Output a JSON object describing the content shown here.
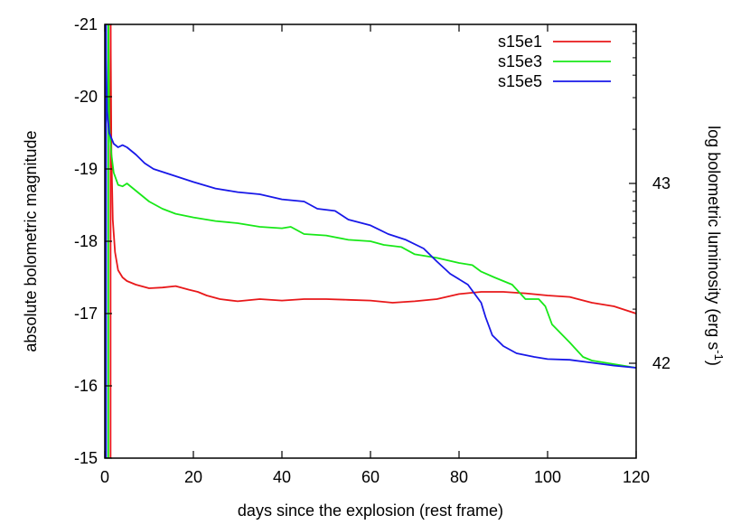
{
  "chart_data": {
    "type": "line",
    "title": "",
    "xlabel": "days since the explosion (rest frame)",
    "ylabel": "absolute bolometric magnitude",
    "y2label": "log bolometric luminosity (erg s",
    "y2label_sup": "-1",
    "y2label_end": ")",
    "xlim": [
      0,
      120
    ],
    "ylim": [
      -15,
      -21
    ],
    "xticks": [
      0,
      20,
      40,
      60,
      80,
      100,
      120
    ],
    "xtick_labels": [
      "0",
      "20",
      "40",
      "60",
      "80",
      "100",
      "120"
    ],
    "yticks": [
      -21,
      -20,
      -19,
      -18,
      -17,
      -16,
      -15
    ],
    "ytick_labels": [
      "-21",
      "-20",
      "-19",
      "-18",
      "-17",
      "-16",
      "-15"
    ],
    "y2ticks": [
      42,
      43
    ],
    "y2tick_labels": [
      "42",
      "43"
    ],
    "legend_position": "top-right",
    "grid": false,
    "series": [
      {
        "name": "s15e1",
        "color": "#e8181a",
        "points": [
          [
            1.3,
            -21.0
          ],
          [
            1.5,
            -19.2
          ],
          [
            1.8,
            -18.3
          ],
          [
            2.3,
            -17.85
          ],
          [
            3.0,
            -17.6
          ],
          [
            4.0,
            -17.5
          ],
          [
            5.0,
            -17.45
          ],
          [
            7.0,
            -17.4
          ],
          [
            10.0,
            -17.35
          ],
          [
            13.0,
            -17.36
          ],
          [
            16.0,
            -17.38
          ],
          [
            19.0,
            -17.33
          ],
          [
            21.0,
            -17.3
          ],
          [
            23.0,
            -17.25
          ],
          [
            26.0,
            -17.2
          ],
          [
            30.0,
            -17.17
          ],
          [
            35.0,
            -17.2
          ],
          [
            40.0,
            -17.18
          ],
          [
            45.0,
            -17.2
          ],
          [
            50.0,
            -17.2
          ],
          [
            55.0,
            -17.19
          ],
          [
            60.0,
            -17.18
          ],
          [
            65.0,
            -17.15
          ],
          [
            70.0,
            -17.17
          ],
          [
            75.0,
            -17.2
          ],
          [
            80.0,
            -17.27
          ],
          [
            85.0,
            -17.3
          ],
          [
            90.0,
            -17.3
          ],
          [
            95.0,
            -17.28
          ],
          [
            100.0,
            -17.25
          ],
          [
            105.0,
            -17.23
          ],
          [
            110.0,
            -17.15
          ],
          [
            115.0,
            -17.1
          ],
          [
            120.0,
            -17.0
          ]
        ]
      },
      {
        "name": "s15e3",
        "color": "#18e818",
        "points": [
          [
            0.8,
            -21.0
          ],
          [
            1.0,
            -19.6
          ],
          [
            1.5,
            -19.2
          ],
          [
            2.0,
            -18.95
          ],
          [
            3.0,
            -18.78
          ],
          [
            4.0,
            -18.76
          ],
          [
            5.0,
            -18.8
          ],
          [
            6.0,
            -18.75
          ],
          [
            8.0,
            -18.65
          ],
          [
            10.0,
            -18.55
          ],
          [
            13.0,
            -18.45
          ],
          [
            16.0,
            -18.38
          ],
          [
            20.0,
            -18.33
          ],
          [
            25.0,
            -18.28
          ],
          [
            30.0,
            -18.25
          ],
          [
            35.0,
            -18.2
          ],
          [
            40.0,
            -18.18
          ],
          [
            42.0,
            -18.2
          ],
          [
            45.0,
            -18.1
          ],
          [
            50.0,
            -18.08
          ],
          [
            55.0,
            -18.02
          ],
          [
            60.0,
            -18.0
          ],
          [
            63.0,
            -17.95
          ],
          [
            67.0,
            -17.92
          ],
          [
            70.0,
            -17.82
          ],
          [
            75.0,
            -17.77
          ],
          [
            80.0,
            -17.7
          ],
          [
            83.0,
            -17.67
          ],
          [
            85.0,
            -17.58
          ],
          [
            88.0,
            -17.5
          ],
          [
            92.0,
            -17.4
          ],
          [
            95.0,
            -17.2
          ],
          [
            98.0,
            -17.2
          ],
          [
            99.5,
            -17.1
          ],
          [
            101.0,
            -16.85
          ],
          [
            105.0,
            -16.6
          ],
          [
            108.0,
            -16.4
          ],
          [
            110.0,
            -16.35
          ],
          [
            115.0,
            -16.3
          ],
          [
            120.0,
            -16.25
          ]
        ]
      },
      {
        "name": "s15e5",
        "color": "#1818e8",
        "points": [
          [
            0.2,
            -21.0
          ],
          [
            0.5,
            -19.8
          ],
          [
            1.0,
            -19.5
          ],
          [
            2.0,
            -19.35
          ],
          [
            3.0,
            -19.3
          ],
          [
            4.0,
            -19.33
          ],
          [
            5.0,
            -19.3
          ],
          [
            7.0,
            -19.2
          ],
          [
            9.0,
            -19.08
          ],
          [
            11.0,
            -19.0
          ],
          [
            15.0,
            -18.92
          ],
          [
            20.0,
            -18.82
          ],
          [
            25.0,
            -18.73
          ],
          [
            30.0,
            -18.68
          ],
          [
            35.0,
            -18.65
          ],
          [
            40.0,
            -18.58
          ],
          [
            45.0,
            -18.55
          ],
          [
            48.0,
            -18.45
          ],
          [
            52.0,
            -18.42
          ],
          [
            55.0,
            -18.3
          ],
          [
            60.0,
            -18.22
          ],
          [
            64.0,
            -18.1
          ],
          [
            68.0,
            -18.02
          ],
          [
            72.0,
            -17.9
          ],
          [
            75.0,
            -17.72
          ],
          [
            78.0,
            -17.55
          ],
          [
            82.0,
            -17.4
          ],
          [
            85.0,
            -17.15
          ],
          [
            86.0,
            -16.95
          ],
          [
            87.5,
            -16.7
          ],
          [
            90.0,
            -16.55
          ],
          [
            93.0,
            -16.45
          ],
          [
            97.0,
            -16.4
          ],
          [
            100.0,
            -16.37
          ],
          [
            105.0,
            -16.36
          ],
          [
            110.0,
            -16.32
          ],
          [
            115.0,
            -16.28
          ],
          [
            120.0,
            -16.25
          ]
        ]
      }
    ],
    "vertical_lines": [
      {
        "x": 0.3,
        "color": "#1818e8"
      },
      {
        "x": 0.8,
        "color": "#18e818"
      },
      {
        "x": 1.3,
        "color": "#e8181a"
      }
    ]
  }
}
